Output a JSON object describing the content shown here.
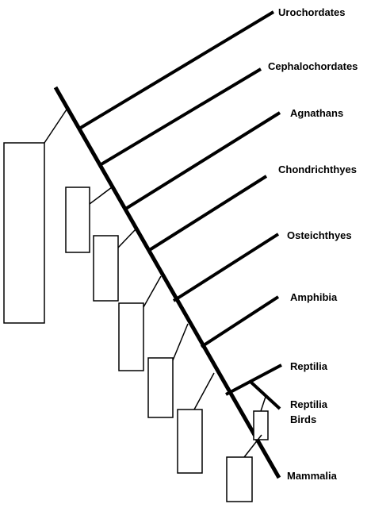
{
  "diagram": {
    "taxa": [
      {
        "label": "Urochordates"
      },
      {
        "label": "Cephalochordates"
      },
      {
        "label": "Agnathans"
      },
      {
        "label": "Chondrichthyes"
      },
      {
        "label": "Osteichthyes"
      },
      {
        "label": "Amphibia"
      },
      {
        "label": "Reptilia"
      },
      {
        "label": "Reptilia\nBirds"
      },
      {
        "label": "Mammalia"
      }
    ],
    "trait_boxes": [
      {
        "text": ""
      },
      {
        "text": ""
      },
      {
        "text": ""
      },
      {
        "text": ""
      },
      {
        "text": ""
      },
      {
        "text": ""
      },
      {
        "text": ""
      },
      {
        "text": ""
      }
    ]
  }
}
